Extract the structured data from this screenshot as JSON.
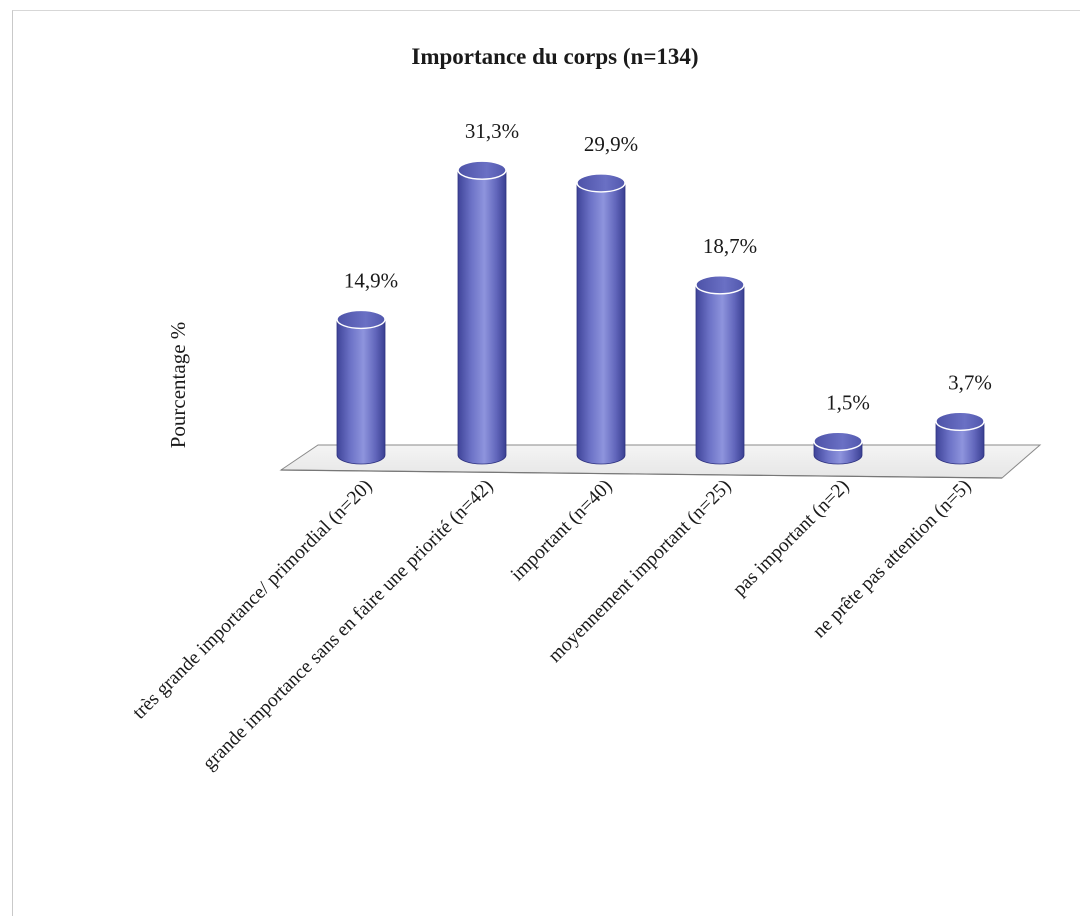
{
  "chart_data": {
    "type": "bar",
    "title": "Importance du corps (n=134)",
    "xlabel": "",
    "ylabel": "Pourcentage %",
    "ylim": [
      0,
      35
    ],
    "grid": false,
    "legend": "none",
    "bar_style": "3d-cylinder",
    "bar_color": "#6f74c9",
    "categories": [
      "très grande importance/ primordial (n=20)",
      "grande importance sans en faire une priorité (n=42)",
      "important (n=40)",
      "moyennement important (n=25)",
      "pas important (n=2)",
      "ne prête pas attention (n=5)"
    ],
    "values": [
      14.9,
      31.3,
      29.9,
      18.7,
      1.5,
      3.7
    ],
    "data_labels": [
      "14,9%",
      "31,3%",
      "29,9%",
      "18,7%",
      "1,5%",
      "3,7%"
    ]
  }
}
